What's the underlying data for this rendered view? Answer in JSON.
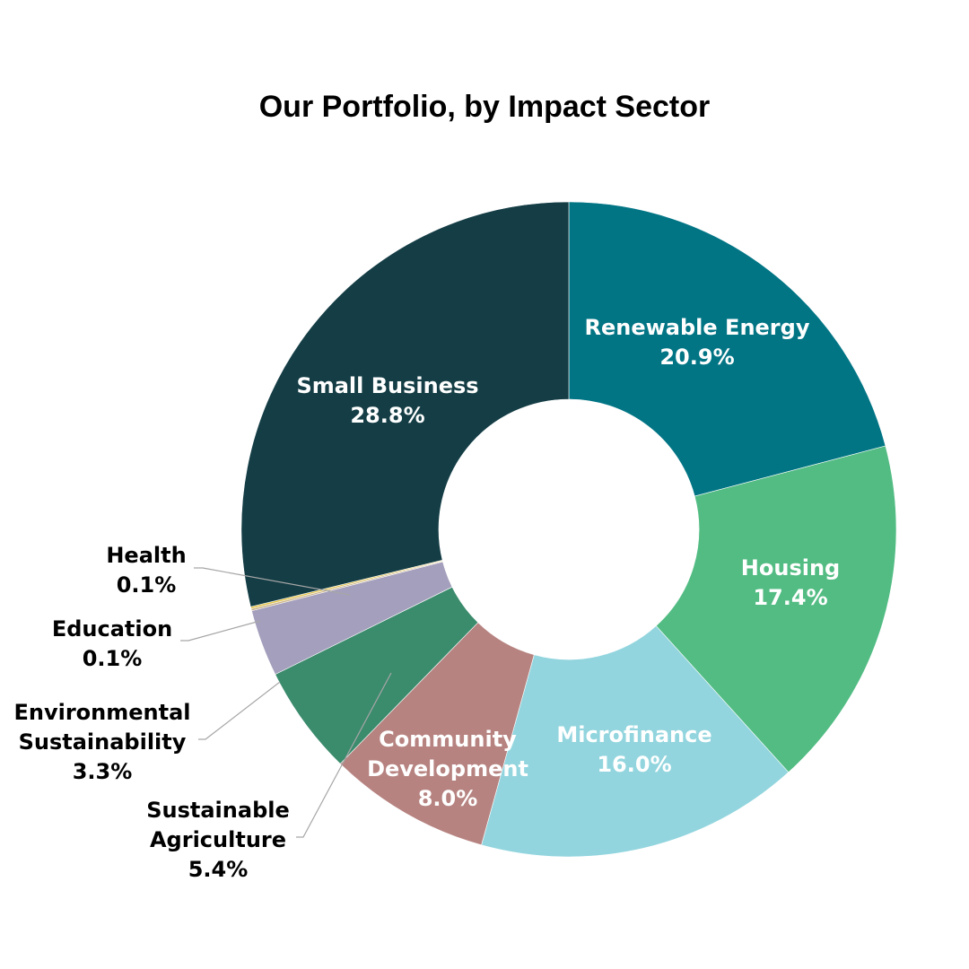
{
  "chart_data": {
    "type": "pie",
    "title": "Our Portfolio, by Impact Sector",
    "donut": true,
    "start": "top, clockwise",
    "slices": [
      {
        "label": "Renewable Energy",
        "pct_text": "20.9%",
        "value": 20.9,
        "color": "#027585",
        "text_color": "#ffffff"
      },
      {
        "label": "Housing",
        "pct_text": "17.4%",
        "value": 17.4,
        "color": "#52bc83",
        "text_color": "#ffffff"
      },
      {
        "label": "Microfinance",
        "pct_text": "16.0%",
        "value": 16.0,
        "color": "#92d5de",
        "text_color": "#ffffff"
      },
      {
        "label": "Community Development",
        "label_lines": [
          "Community",
          "Development"
        ],
        "pct_text": "8.0%",
        "value": 8.0,
        "color": "#b68380",
        "text_color": "#ffffff"
      },
      {
        "label": "Sustainable Agriculture",
        "label_lines": [
          "Sustainable",
          "Agriculture"
        ],
        "pct_text": "5.4%",
        "value": 5.4,
        "color": "#3b8b6d",
        "text_color": "#000000"
      },
      {
        "label": "Environmental Sustainability",
        "label_lines": [
          "Environmental",
          "Sustainability"
        ],
        "pct_text": "3.3%",
        "value": 3.3,
        "color": "#a49fbc",
        "text_color": "#000000"
      },
      {
        "label": "Education",
        "pct_text": "0.1%",
        "value": 0.1,
        "color": "#c9b28a",
        "text_color": "#000000"
      },
      {
        "label": "Health",
        "pct_text": "0.1%",
        "value": 0.1,
        "color": "#e4c44a",
        "text_color": "#000000"
      },
      {
        "label": "Small Business",
        "pct_text": "28.8%",
        "value": 28.8,
        "color": "#143d45",
        "text_color": "#ffffff"
      }
    ]
  }
}
